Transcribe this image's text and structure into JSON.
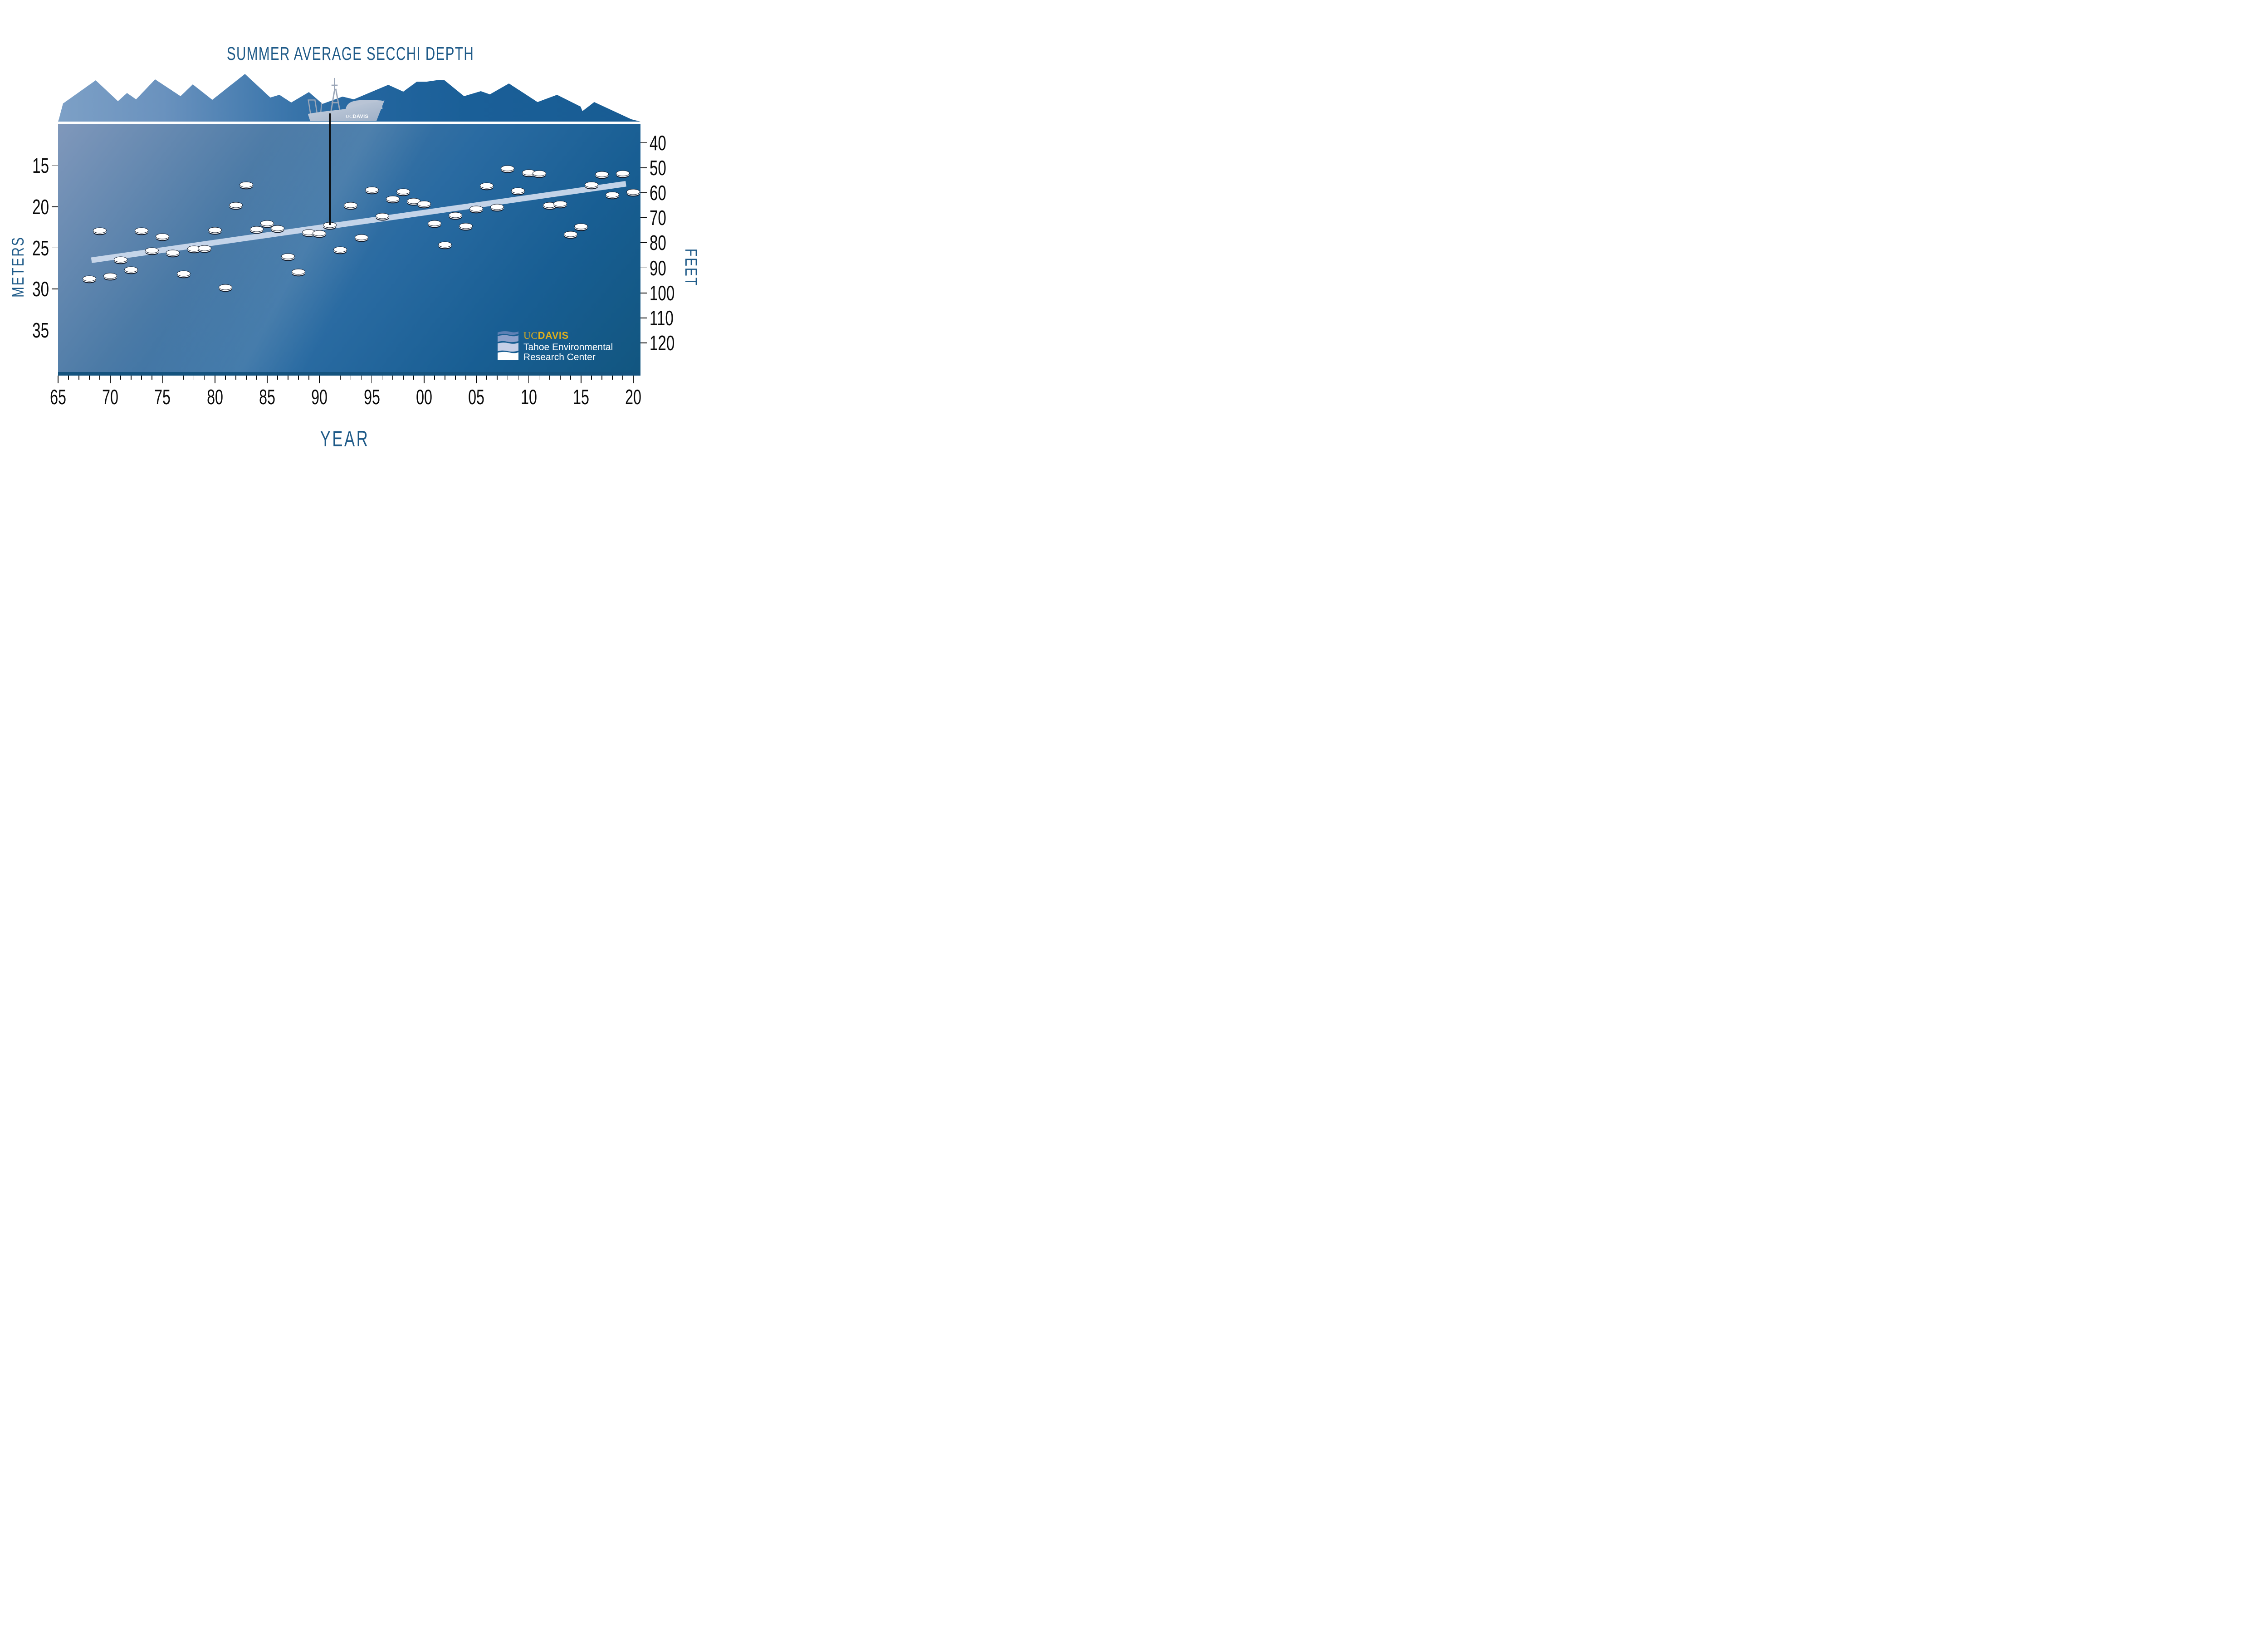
{
  "chart_data": {
    "type": "scatter",
    "title": "SUMMER AVERAGE SECCHI DEPTH",
    "xlabel": "YEAR",
    "ylabel_left": "METERS",
    "ylabel_right": "FEET",
    "marker": "secchi-disc",
    "grid": false,
    "x_range_years": [
      1965,
      2020.6
    ],
    "y_range_meters_visible": [
      10.1,
      40.6
    ],
    "x_major_ticks": [
      {
        "year": 1965,
        "label": "65"
      },
      {
        "year": 1970,
        "label": "70"
      },
      {
        "year": 1975,
        "label": "75"
      },
      {
        "year": 1980,
        "label": "80"
      },
      {
        "year": 1985,
        "label": "85"
      },
      {
        "year": 1990,
        "label": "90"
      },
      {
        "year": 1995,
        "label": "95"
      },
      {
        "year": 2000,
        "label": "00"
      },
      {
        "year": 2005,
        "label": "05"
      },
      {
        "year": 2010,
        "label": "10"
      },
      {
        "year": 2015,
        "label": "15"
      },
      {
        "year": 2020,
        "label": "20"
      }
    ],
    "x_minor_tick_every_years": 1,
    "y_ticks_meters": [
      15,
      20,
      25,
      30,
      35
    ],
    "y_ticks_feet": [
      40,
      50,
      60,
      70,
      80,
      90,
      100,
      110,
      120
    ],
    "points": [
      {
        "year": 1968,
        "secchi_m": 28.7
      },
      {
        "year": 1969,
        "secchi_m": 22.9
      },
      {
        "year": 1970,
        "secchi_m": 28.4
      },
      {
        "year": 1971,
        "secchi_m": 26.4
      },
      {
        "year": 1972,
        "secchi_m": 27.6
      },
      {
        "year": 1973,
        "secchi_m": 22.9
      },
      {
        "year": 1974,
        "secchi_m": 25.3
      },
      {
        "year": 1975,
        "secchi_m": 23.6
      },
      {
        "year": 1976,
        "secchi_m": 25.6
      },
      {
        "year": 1977,
        "secchi_m": 28.1
      },
      {
        "year": 1978,
        "secchi_m": 25.1
      },
      {
        "year": 1979,
        "secchi_m": 25.0
      },
      {
        "year": 1980,
        "secchi_m": 22.8
      },
      {
        "year": 1981,
        "secchi_m": 29.8
      },
      {
        "year": 1982,
        "secchi_m": 19.8
      },
      {
        "year": 1983,
        "secchi_m": 17.3
      },
      {
        "year": 1984,
        "secchi_m": 22.7
      },
      {
        "year": 1985,
        "secchi_m": 22.0
      },
      {
        "year": 1986,
        "secchi_m": 22.6
      },
      {
        "year": 1987,
        "secchi_m": 26.0
      },
      {
        "year": 1988,
        "secchi_m": 27.9
      },
      {
        "year": 1989,
        "secchi_m": 23.1
      },
      {
        "year": 1990,
        "secchi_m": 23.2
      },
      {
        "year": 1991,
        "secchi_m": 22.2
      },
      {
        "year": 1992,
        "secchi_m": 25.2
      },
      {
        "year": 1993,
        "secchi_m": 19.8
      },
      {
        "year": 1994,
        "secchi_m": 23.7
      },
      {
        "year": 1995,
        "secchi_m": 17.9
      },
      {
        "year": 1996,
        "secchi_m": 21.1
      },
      {
        "year": 1997,
        "secchi_m": 19.0
      },
      {
        "year": 1998,
        "secchi_m": 18.1
      },
      {
        "year": 1999,
        "secchi_m": 19.3
      },
      {
        "year": 2000,
        "secchi_m": 19.6
      },
      {
        "year": 2001,
        "secchi_m": 22.0
      },
      {
        "year": 2002,
        "secchi_m": 24.6
      },
      {
        "year": 2003,
        "secchi_m": 21.0
      },
      {
        "year": 2004,
        "secchi_m": 22.3
      },
      {
        "year": 2005,
        "secchi_m": 20.2
      },
      {
        "year": 2006,
        "secchi_m": 17.4
      },
      {
        "year": 2007,
        "secchi_m": 20.0
      },
      {
        "year": 2008,
        "secchi_m": 15.3
      },
      {
        "year": 2009,
        "secchi_m": 18.0
      },
      {
        "year": 2010,
        "secchi_m": 15.8
      },
      {
        "year": 2011,
        "secchi_m": 15.9
      },
      {
        "year": 2012,
        "secchi_m": 19.8
      },
      {
        "year": 2013,
        "secchi_m": 19.6
      },
      {
        "year": 2014,
        "secchi_m": 23.3
      },
      {
        "year": 2015,
        "secchi_m": 22.4
      },
      {
        "year": 2016,
        "secchi_m": 17.3
      },
      {
        "year": 2017,
        "secchi_m": 16.0
      },
      {
        "year": 2018,
        "secchi_m": 18.5
      },
      {
        "year": 2019,
        "secchi_m": 15.9
      },
      {
        "year": 2020,
        "secchi_m": 18.2
      }
    ],
    "trend_line": {
      "year_start": 1968.2,
      "depth_start_m": 26.5,
      "year_end": 2019.3,
      "depth_end_m": 17.2
    },
    "annotation": "measuring line from research boat down to 1991 secchi disc"
  },
  "boat": {
    "uc": "UC",
    "davis": "DAVIS"
  },
  "logo": {
    "uc": "UC",
    "davis": "DAVIS",
    "line1": "Tahoe Environmental",
    "line2": "Research Center"
  },
  "colors": {
    "heading_blue": "#1E5A88",
    "tick_text": "#0b0b0b",
    "axis_bar": "#14537E",
    "trend_line": "#CBD9EC",
    "disc_outline": "#0D1626",
    "disc_fill": "#FFFFFF",
    "water_top_left": "#8098BB",
    "water_bottom_right": "#125680",
    "mountain_light": "#7DA0C6",
    "mountain_dark": "#185C93",
    "boat_gray": "#C1CBD9",
    "gold": "#DFAE1C"
  }
}
